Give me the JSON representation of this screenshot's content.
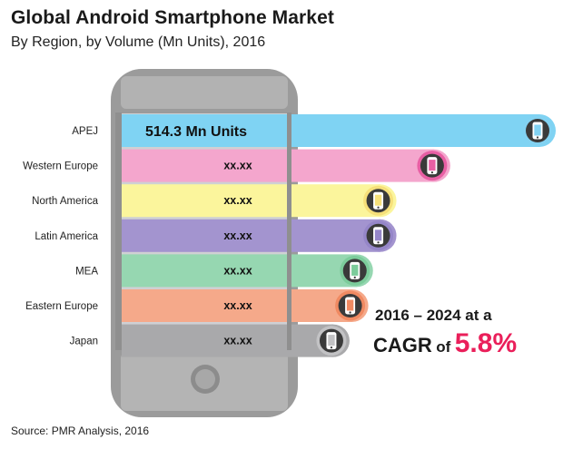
{
  "title": "Global Android Smartphone Market",
  "subtitle": "By Region, by Volume (Mn Units), 2016",
  "source": "Source: PMR Analysis, 2016",
  "cagr": {
    "line1": "2016 – 2024 at a",
    "word": "CAGR",
    "of": "of",
    "value": "5.8%"
  },
  "chart_data": {
    "type": "bar",
    "orientation": "horizontal",
    "categories": [
      "APEJ",
      "Western Europe",
      "North America",
      "Latin America",
      "MEA",
      "Eastern Europe",
      "Japan"
    ],
    "values": [
      514.3,
      null,
      null,
      null,
      null,
      null,
      null
    ],
    "data_labels": [
      "514.3 Mn Units",
      "xx.xx",
      "xx.xx",
      "xx.xx",
      "xx.xx",
      "xx.xx",
      "xx.xx"
    ],
    "relative_lengths": [
      1.0,
      0.55,
      0.32,
      0.32,
      0.22,
      0.2,
      0.12
    ],
    "colors": [
      "#7fd3f3",
      "#f4a6cd",
      "#fbf59c",
      "#a394cf",
      "#96d7b1",
      "#f5a98a",
      "#a9a9ab"
    ],
    "ring_colors": [
      "#82d2f2",
      "#e85fa4",
      "#f6e07a",
      "#9586c8",
      "#7ccc9b",
      "#f08a62",
      "#c2c2c4"
    ],
    "icon": "smartphone-icon",
    "ylabel": "",
    "xlabel": ""
  }
}
